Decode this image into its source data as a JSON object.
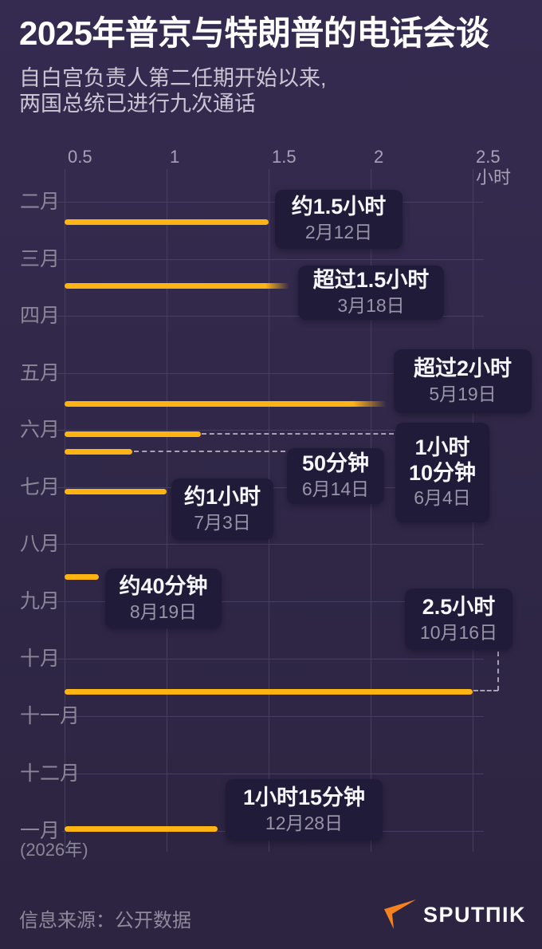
{
  "header": {
    "title": "2025年普京与特朗普的电话会谈",
    "subtitle_line1": "自白宫负责人第二任期开始以来,",
    "subtitle_line2": "两国总统已进行九次通话"
  },
  "colors": {
    "background_top": "#352b50",
    "background_bottom": "#2c2440",
    "bar": "#ffb414",
    "gridline": "#473e63",
    "callout_bg": "#201b38",
    "duration_text": "#f7f6fa",
    "date_text": "#9a94a8",
    "month_label": "#8b8698",
    "axis_label": "#a8a2b6",
    "brand_orange": "#f5821f"
  },
  "chart_data": {
    "type": "bar",
    "orientation": "horizontal",
    "title": "2025年普京与特朗普的电话会谈",
    "xlabel_unit": "小时",
    "x_axis": {
      "ticks": [
        "0.5",
        "1",
        "1.5",
        "2",
        "2.5"
      ],
      "tick_values": [
        0.5,
        1,
        1.5,
        2,
        2.5
      ],
      "range_hours": [
        0.5,
        2.5
      ],
      "grid": true
    },
    "y_axis": {
      "months": [
        "二月",
        "三月",
        "四月",
        "五月",
        "六月",
        "七月",
        "八月",
        "九月",
        "十月",
        "十一月",
        "十二月",
        "一月"
      ],
      "january_note": "(2026年)"
    },
    "calls": [
      {
        "date": "2月12日",
        "duration_label": "约1.5小时",
        "hours": 1.5,
        "open_ended": false,
        "dashed_connector": false
      },
      {
        "date": "3月18日",
        "duration_label": "超过1.5小时",
        "hours": 1.6,
        "open_ended": true,
        "dashed_connector": false
      },
      {
        "date": "5月19日",
        "duration_label": "超过2小时",
        "hours": 2.08,
        "open_ended": true,
        "dashed_connector": false
      },
      {
        "date": "6月4日",
        "duration_label": "1小时10分钟",
        "hours": 1.167,
        "open_ended": false,
        "dashed_connector": true,
        "duration_lines": [
          "1小时",
          "10分钟"
        ]
      },
      {
        "date": "6月14日",
        "duration_label": "50分钟",
        "hours": 0.833,
        "open_ended": false,
        "dashed_connector": true
      },
      {
        "date": "7月3日",
        "duration_label": "约1小时",
        "hours": 1.0,
        "open_ended": false,
        "dashed_connector": false
      },
      {
        "date": "8月19日",
        "duration_label": "约40分钟",
        "hours": 0.667,
        "open_ended": false,
        "dashed_connector": false
      },
      {
        "date": "10月16日",
        "duration_label": "2.5小时",
        "hours": 2.5,
        "open_ended": false,
        "dashed_connector": true
      },
      {
        "date": "12月28日",
        "duration_label": "1小时15分钟",
        "hours": 1.25,
        "open_ended": false,
        "dashed_connector": false
      }
    ]
  },
  "footer": {
    "source": "信息来源：公开数据",
    "brand": "SPUTNIK",
    "brand_display": "SPUTΠIK"
  }
}
